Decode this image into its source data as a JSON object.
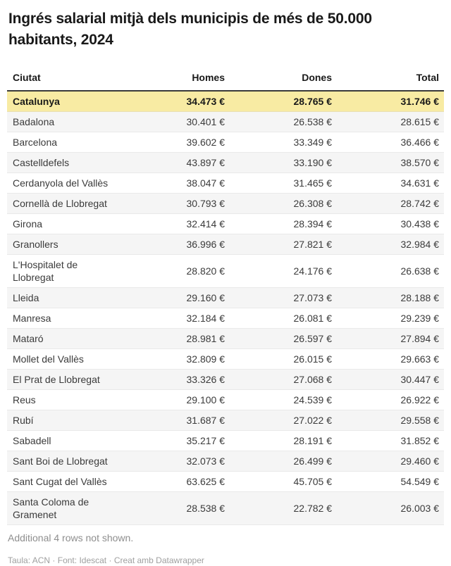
{
  "header": {
    "title": "Ingrés salarial mitjà dels municipis de més de 50.000 habitants, 2024"
  },
  "table": {
    "columns": [
      "Ciutat",
      "Homes",
      "Dones",
      "Total"
    ],
    "rows": [
      {
        "city": "Catalunya",
        "homes": "34.473 €",
        "dones": "28.765 €",
        "total": "31.746 €",
        "highlight": true
      },
      {
        "city": "Badalona",
        "homes": "30.401 €",
        "dones": "26.538 €",
        "total": "28.615 €"
      },
      {
        "city": "Barcelona",
        "homes": "39.602 €",
        "dones": "33.349 €",
        "total": "36.466 €"
      },
      {
        "city": "Castelldefels",
        "homes": "43.897 €",
        "dones": "33.190 €",
        "total": "38.570 €"
      },
      {
        "city": "Cerdanyola del Vallès",
        "homes": "38.047 €",
        "dones": "31.465 €",
        "total": "34.631 €"
      },
      {
        "city": "Cornellà de Llobregat",
        "homes": "30.793 €",
        "dones": "26.308 €",
        "total": "28.742 €"
      },
      {
        "city": "Girona",
        "homes": "32.414 €",
        "dones": "28.394 €",
        "total": "30.438 €"
      },
      {
        "city": "Granollers",
        "homes": "36.996 €",
        "dones": "27.821 €",
        "total": "32.984 €"
      },
      {
        "city": "L'Hospitalet de Llobregat",
        "homes": "28.820 €",
        "dones": "24.176 €",
        "total": "26.638 €"
      },
      {
        "city": "Lleida",
        "homes": "29.160 €",
        "dones": "27.073 €",
        "total": "28.188 €"
      },
      {
        "city": "Manresa",
        "homes": "32.184 €",
        "dones": "26.081 €",
        "total": "29.239 €"
      },
      {
        "city": "Mataró",
        "homes": "28.981 €",
        "dones": "26.597 €",
        "total": "27.894 €"
      },
      {
        "city": "Mollet del Vallès",
        "homes": "32.809 €",
        "dones": "26.015 €",
        "total": "29.663 €"
      },
      {
        "city": "El Prat de Llobregat",
        "homes": "33.326 €",
        "dones": "27.068 €",
        "total": "30.447 €"
      },
      {
        "city": "Reus",
        "homes": "29.100 €",
        "dones": "24.539 €",
        "total": "26.922 €"
      },
      {
        "city": "Rubí",
        "homes": "31.687 €",
        "dones": "27.022 €",
        "total": "29.558 €"
      },
      {
        "city": "Sabadell",
        "homes": "35.217 €",
        "dones": "28.191 €",
        "total": "31.852 €"
      },
      {
        "city": "Sant Boi de Llobregat",
        "homes": "32.073 €",
        "dones": "26.499 €",
        "total": "29.460 €"
      },
      {
        "city": "Sant Cugat del Vallès",
        "homes": "63.625 €",
        "dones": "45.705 €",
        "total": "54.549 €"
      },
      {
        "city": "Santa Coloma de Gramenet",
        "homes": "28.538 €",
        "dones": "22.782 €",
        "total": "26.003 €"
      }
    ]
  },
  "footer": {
    "note": "Additional 4 rows not shown.",
    "attribution": {
      "table_label": "Taula:",
      "table_source": "ACN",
      "separator1": "·",
      "font_label": "Font:",
      "font_source": "Idescat",
      "separator2": "·",
      "credit": "Creat amb Datawrapper"
    }
  },
  "colors": {
    "highlight_row": "#f8eba3",
    "stripe_row": "#f5f5f5",
    "header_border": "#3a3a3a",
    "row_border": "#e9e9e9",
    "title_text": "#191919",
    "cell_text": "#3b3b3b",
    "note_text": "#8e8e8e",
    "attribution_text": "#9f9f9f"
  },
  "chart_data": {
    "type": "table",
    "title": "Ingrés salarial mitjà dels municipis de més de 50.000 habitants, 2024",
    "columns": [
      "Ciutat",
      "Homes",
      "Dones",
      "Total"
    ],
    "units": "€",
    "highlighted_row": "Catalunya",
    "note": "Additional 4 rows not shown.",
    "rows": [
      [
        "Catalunya",
        34473,
        28765,
        31746
      ],
      [
        "Badalona",
        30401,
        26538,
        28615
      ],
      [
        "Barcelona",
        39602,
        33349,
        36466
      ],
      [
        "Castelldefels",
        43897,
        33190,
        38570
      ],
      [
        "Cerdanyola del Vallès",
        38047,
        31465,
        34631
      ],
      [
        "Cornellà de Llobregat",
        30793,
        26308,
        28742
      ],
      [
        "Girona",
        32414,
        28394,
        30438
      ],
      [
        "Granollers",
        36996,
        27821,
        32984
      ],
      [
        "L'Hospitalet de Llobregat",
        28820,
        24176,
        26638
      ],
      [
        "Lleida",
        29160,
        27073,
        28188
      ],
      [
        "Manresa",
        32184,
        26081,
        29239
      ],
      [
        "Mataró",
        28981,
        26597,
        27894
      ],
      [
        "Mollet del Vallès",
        32809,
        26015,
        29663
      ],
      [
        "El Prat de Llobregat",
        33326,
        27068,
        30447
      ],
      [
        "Reus",
        29100,
        24539,
        26922
      ],
      [
        "Rubí",
        31687,
        27022,
        29558
      ],
      [
        "Sabadell",
        35217,
        28191,
        31852
      ],
      [
        "Sant Boi de Llobregat",
        32073,
        26499,
        29460
      ],
      [
        "Sant Cugat del Vallès",
        63625,
        45705,
        54549
      ],
      [
        "Santa Coloma de Gramenet",
        28538,
        22782,
        26003
      ]
    ]
  }
}
